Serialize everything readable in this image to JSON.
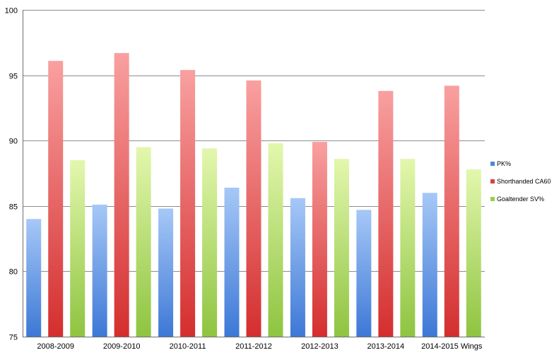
{
  "chart_data": {
    "type": "bar",
    "title": "",
    "xlabel": "",
    "ylabel": "",
    "ylim": [
      75,
      100
    ],
    "yticks": [
      75,
      80,
      85,
      90,
      95,
      100
    ],
    "grid": true,
    "legend_position": "right",
    "categories": [
      "2008-2009",
      "2009-2010",
      "2010-2011",
      "2011-2012",
      "2012-2013",
      "2013-2014",
      "2014-2015 Wings"
    ],
    "series": [
      {
        "name": "PK%",
        "color_top": "#a6c8f7",
        "color_bottom": "#3d78d6",
        "values": [
          84.0,
          85.1,
          84.8,
          86.4,
          85.6,
          84.7,
          86.0
        ]
      },
      {
        "name": "Shorthanded CA60",
        "color_top": "#f9a0a0",
        "color_bottom": "#d42e2e",
        "values": [
          96.1,
          96.7,
          95.4,
          94.6,
          89.9,
          93.8,
          94.2
        ]
      },
      {
        "name": "Goaltender SV%",
        "color_top": "#e3f7ad",
        "color_bottom": "#8ec440",
        "values": [
          88.5,
          89.5,
          89.4,
          89.8,
          88.6,
          88.6,
          87.8
        ]
      }
    ]
  }
}
